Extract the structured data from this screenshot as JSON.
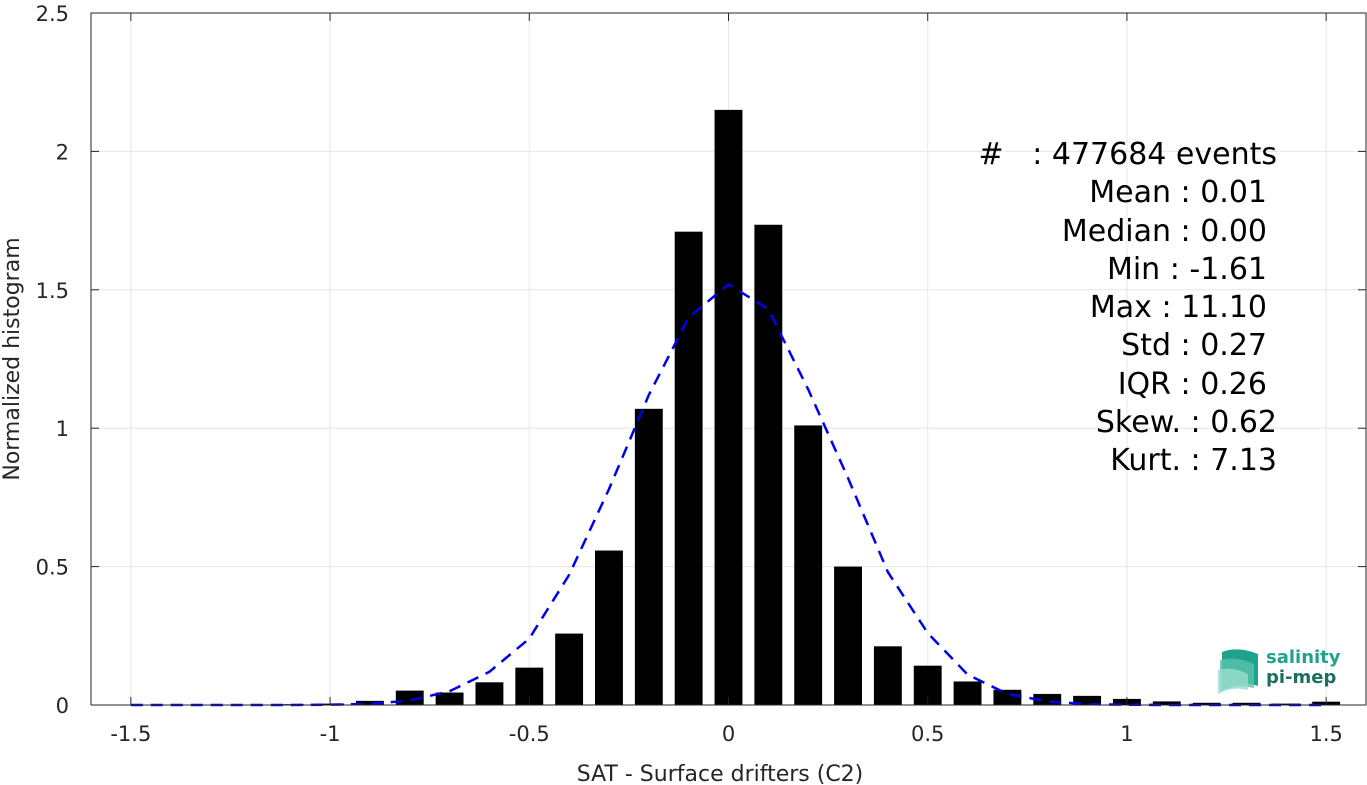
{
  "chart_data": {
    "type": "bar",
    "xlabel": "SAT - Surface drifters (C2)",
    "ylabel": "Normalized histogram",
    "xlim": [
      -1.6,
      1.6
    ],
    "ylim": [
      0,
      2.5
    ],
    "x_ticks": [
      "-1.5",
      "-1",
      "-0.5",
      "0",
      "0.5",
      "1",
      "1.5"
    ],
    "x_tick_values": [
      -1.5,
      -1,
      -0.5,
      0,
      0.5,
      1,
      1.5
    ],
    "y_ticks": [
      "0",
      "0.5",
      "1",
      "1.5",
      "2",
      "2.5"
    ],
    "y_tick_values": [
      0,
      0.5,
      1,
      1.5,
      2,
      2.5
    ],
    "grid": true,
    "bar_width": 0.07,
    "bars": {
      "x": [
        -1.4,
        -1.3,
        -1.2,
        -1.1,
        -1.0,
        -0.9,
        -0.8,
        -0.7,
        -0.6,
        -0.5,
        -0.4,
        -0.3,
        -0.2,
        -0.1,
        0.0,
        0.1,
        0.2,
        0.3,
        0.4,
        0.5,
        0.6,
        0.7,
        0.8,
        0.9,
        1.0,
        1.1,
        1.2,
        1.3,
        1.4,
        1.5
      ],
      "values": [
        0.0,
        0.0,
        0.0,
        0.003,
        0.005,
        0.015,
        0.052,
        0.045,
        0.082,
        0.135,
        0.258,
        0.558,
        1.07,
        1.71,
        2.15,
        1.735,
        1.01,
        0.5,
        0.212,
        0.142,
        0.085,
        0.055,
        0.04,
        0.033,
        0.022,
        0.013,
        0.008,
        0.008,
        0.005,
        0.012
      ],
      "color": "#000000"
    },
    "fit_curve": {
      "style": "dashed",
      "color": "#0000ee",
      "x": [
        -1.5,
        -1.4,
        -1.3,
        -1.2,
        -1.1,
        -1.0,
        -0.9,
        -0.8,
        -0.7,
        -0.6,
        -0.5,
        -0.4,
        -0.3,
        -0.2,
        -0.1,
        0.0,
        0.1,
        0.2,
        0.3,
        0.4,
        0.5,
        0.6,
        0.7,
        0.8,
        0.9,
        1.0,
        1.1,
        1.2,
        1.3,
        1.4,
        1.5
      ],
      "values": [
        0,
        0,
        0,
        0,
        0,
        0.001,
        0.004,
        0.016,
        0.05,
        0.12,
        0.24,
        0.47,
        0.78,
        1.12,
        1.4,
        1.52,
        1.43,
        1.14,
        0.82,
        0.48,
        0.26,
        0.11,
        0.04,
        0.013,
        0.003,
        0.001,
        0,
        0,
        0,
        0,
        0
      ]
    }
  },
  "stats": {
    "count": "#   : 477684 events",
    "mean": "Mean : 0.01",
    "median": "Median : 0.00",
    "min": "Min : -1.61",
    "max": "Max : 11.10",
    "std": "Std : 0.27",
    "iqr": "IQR : 0.26",
    "skew": "Skew. : 0.62",
    "kurt": "Kurt. : 7.13"
  },
  "logo": {
    "line1": "salinity",
    "line2": "pi-mep",
    "colors": [
      "#1fa38e",
      "#1b6f62"
    ]
  }
}
